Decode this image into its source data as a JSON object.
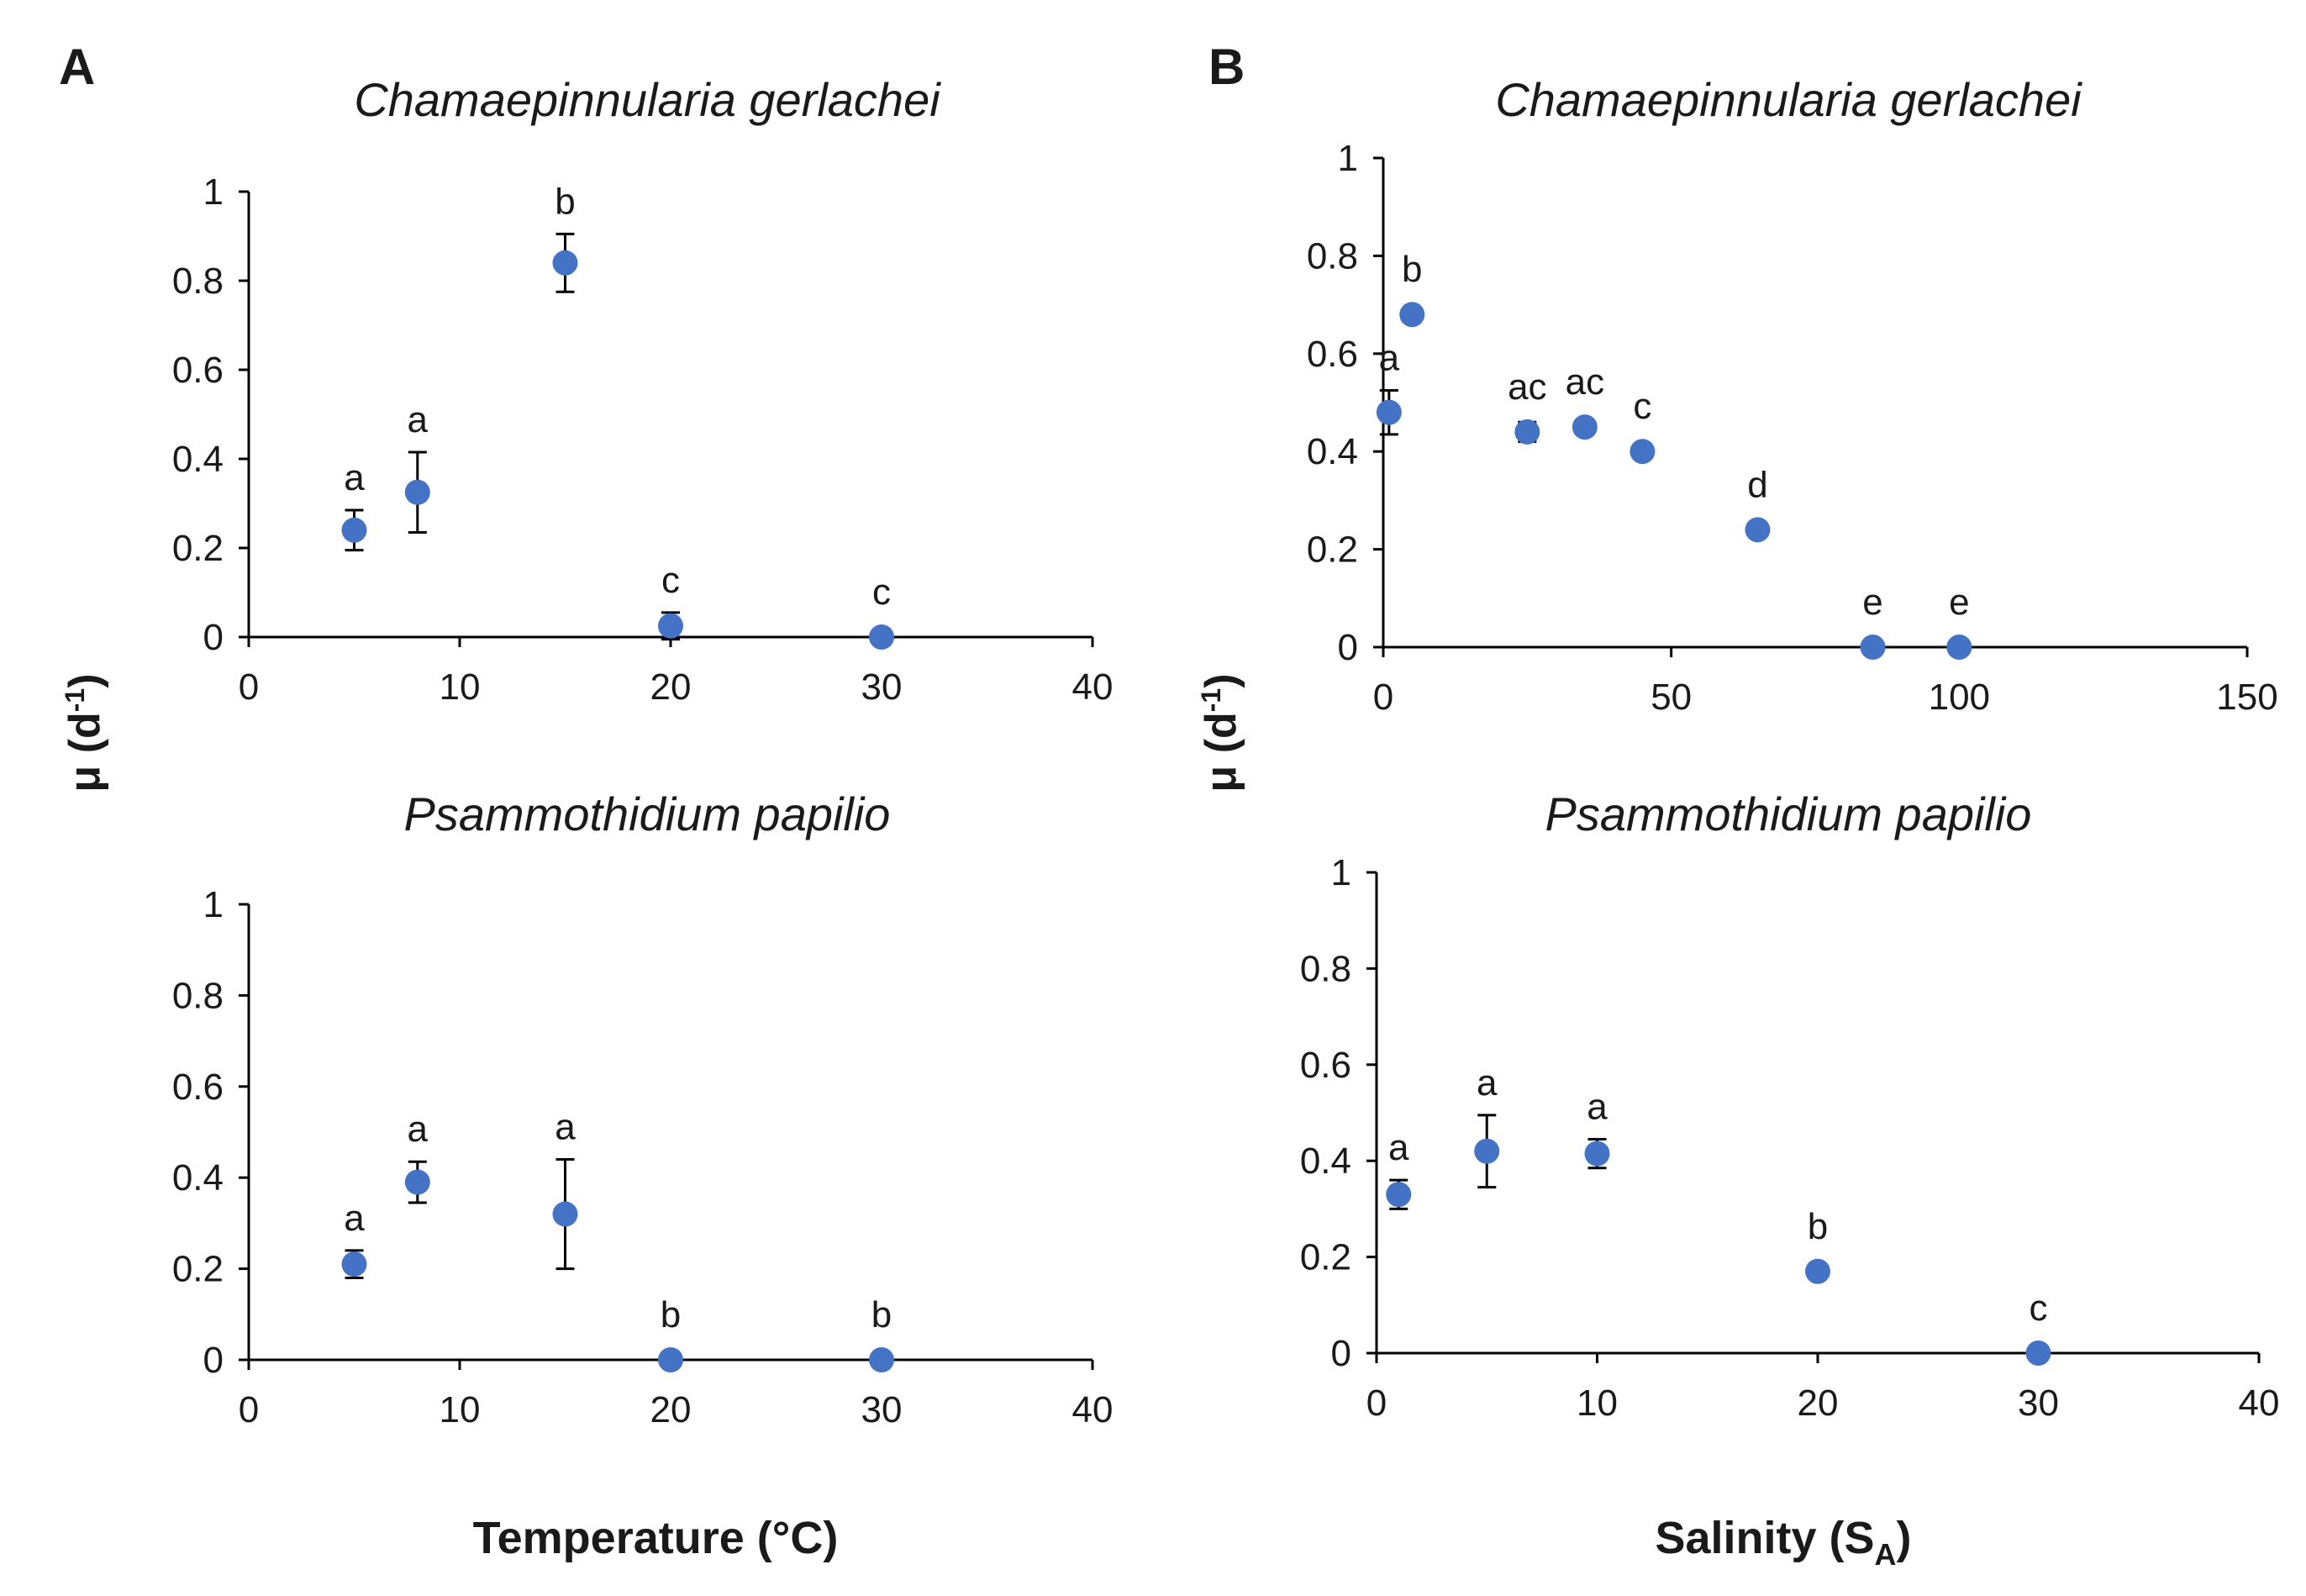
{
  "panels": {
    "a": {
      "label": "A",
      "xlabel": "Temperature (°C)"
    },
    "b": {
      "label": "B",
      "xlabel_main": "Salinity (S",
      "xlabel_sub": "A",
      "xlabel_end": ")"
    }
  },
  "ylabel": {
    "main": "μ (d",
    "sup": "-1",
    "end": ")"
  },
  "colors": {
    "marker": "#4472C4",
    "axis": "#000000",
    "text": "#1a1a1a"
  },
  "chart_data": [
    {
      "id": "A-top",
      "type": "scatter",
      "title": "Chamaepinnularia gerlachei",
      "xlabel": "Temperature (°C)",
      "ylabel": "μ (d-1)",
      "xlim": [
        0,
        40
      ],
      "ylim": [
        0,
        1
      ],
      "xticks": [
        0,
        10,
        20,
        30,
        40
      ],
      "yticks": [
        0,
        0.2,
        0.4,
        0.6,
        0.8,
        1
      ],
      "xtick_labels": [
        "0",
        "10",
        "20",
        "30",
        "40"
      ],
      "ytick_labels": [
        "0",
        "0.2",
        "0.4",
        "0.6",
        "0.8",
        "1"
      ],
      "points": [
        {
          "x": 5,
          "y": 0.24,
          "err": 0.045,
          "letter": "a"
        },
        {
          "x": 8,
          "y": 0.325,
          "err": 0.09,
          "letter": "a"
        },
        {
          "x": 15,
          "y": 0.84,
          "err": 0.065,
          "letter": "b"
        },
        {
          "x": 20,
          "y": 0.025,
          "err": 0.03,
          "letter": "c"
        },
        {
          "x": 30,
          "y": 0.0,
          "err": 0,
          "letter": "c"
        }
      ]
    },
    {
      "id": "A-bottom",
      "type": "scatter",
      "title": "Psammothidium papilio",
      "xlabel": "Temperature (°C)",
      "ylabel": "μ (d-1)",
      "xlim": [
        0,
        40
      ],
      "ylim": [
        0,
        1
      ],
      "xticks": [
        0,
        10,
        20,
        30,
        40
      ],
      "yticks": [
        0,
        0.2,
        0.4,
        0.6,
        0.8,
        1
      ],
      "xtick_labels": [
        "0",
        "10",
        "20",
        "30",
        "40"
      ],
      "ytick_labels": [
        "0",
        "0.2",
        "0.4",
        "0.6",
        "0.8",
        "1"
      ],
      "points": [
        {
          "x": 5,
          "y": 0.21,
          "err": 0.03,
          "letter": "a"
        },
        {
          "x": 8,
          "y": 0.39,
          "err": 0.045,
          "letter": "a"
        },
        {
          "x": 15,
          "y": 0.32,
          "err": 0.12,
          "letter": "a"
        },
        {
          "x": 20,
          "y": 0.0,
          "err": 0,
          "letter": "b"
        },
        {
          "x": 30,
          "y": 0.0,
          "err": 0,
          "letter": "b"
        }
      ]
    },
    {
      "id": "B-top",
      "type": "scatter",
      "title": "Chamaepinnularia gerlachei",
      "xlabel": "Salinity (SA)",
      "ylabel": "μ (d-1)",
      "xlim": [
        0,
        150
      ],
      "ylim": [
        0,
        1
      ],
      "xticks": [
        0,
        50,
        100,
        150
      ],
      "yticks": [
        0,
        0.2,
        0.4,
        0.6,
        0.8,
        1
      ],
      "xtick_labels": [
        "0",
        "50",
        "100",
        "150"
      ],
      "ytick_labels": [
        "0",
        "0.2",
        "0.4",
        "0.6",
        "0.8",
        "1"
      ],
      "points": [
        {
          "x": 1,
          "y": 0.48,
          "err": 0.045,
          "letter": "a"
        },
        {
          "x": 5,
          "y": 0.68,
          "err": 0.01,
          "letter": "b"
        },
        {
          "x": 25,
          "y": 0.44,
          "err": 0.02,
          "letter": "ac"
        },
        {
          "x": 35,
          "y": 0.45,
          "err": 0,
          "letter": "ac"
        },
        {
          "x": 45,
          "y": 0.4,
          "err": 0,
          "letter": "c"
        },
        {
          "x": 65,
          "y": 0.24,
          "err": 0,
          "letter": "d"
        },
        {
          "x": 85,
          "y": 0.0,
          "err": 0,
          "letter": "e"
        },
        {
          "x": 100,
          "y": 0.0,
          "err": 0,
          "letter": "e"
        }
      ]
    },
    {
      "id": "B-bottom",
      "type": "scatter",
      "title": "Psammothidium papilio",
      "xlabel": "Salinity (SA)",
      "ylabel": "μ (d-1)",
      "xlim": [
        0,
        40
      ],
      "ylim": [
        0,
        1
      ],
      "xticks": [
        0,
        10,
        20,
        30,
        40
      ],
      "yticks": [
        0,
        0.2,
        0.4,
        0.6,
        0.8,
        1
      ],
      "xtick_labels": [
        "0",
        "10",
        "20",
        "30",
        "40"
      ],
      "ytick_labels": [
        "0",
        "0.2",
        "0.4",
        "0.6",
        "0.8",
        "1"
      ],
      "points": [
        {
          "x": 1,
          "y": 0.33,
          "err": 0.03,
          "letter": "a"
        },
        {
          "x": 5,
          "y": 0.42,
          "err": 0.075,
          "letter": "a"
        },
        {
          "x": 10,
          "y": 0.415,
          "err": 0.03,
          "letter": "a"
        },
        {
          "x": 20,
          "y": 0.17,
          "err": 0,
          "letter": "b"
        },
        {
          "x": 30,
          "y": 0.0,
          "err": 0,
          "letter": "c"
        }
      ]
    }
  ]
}
